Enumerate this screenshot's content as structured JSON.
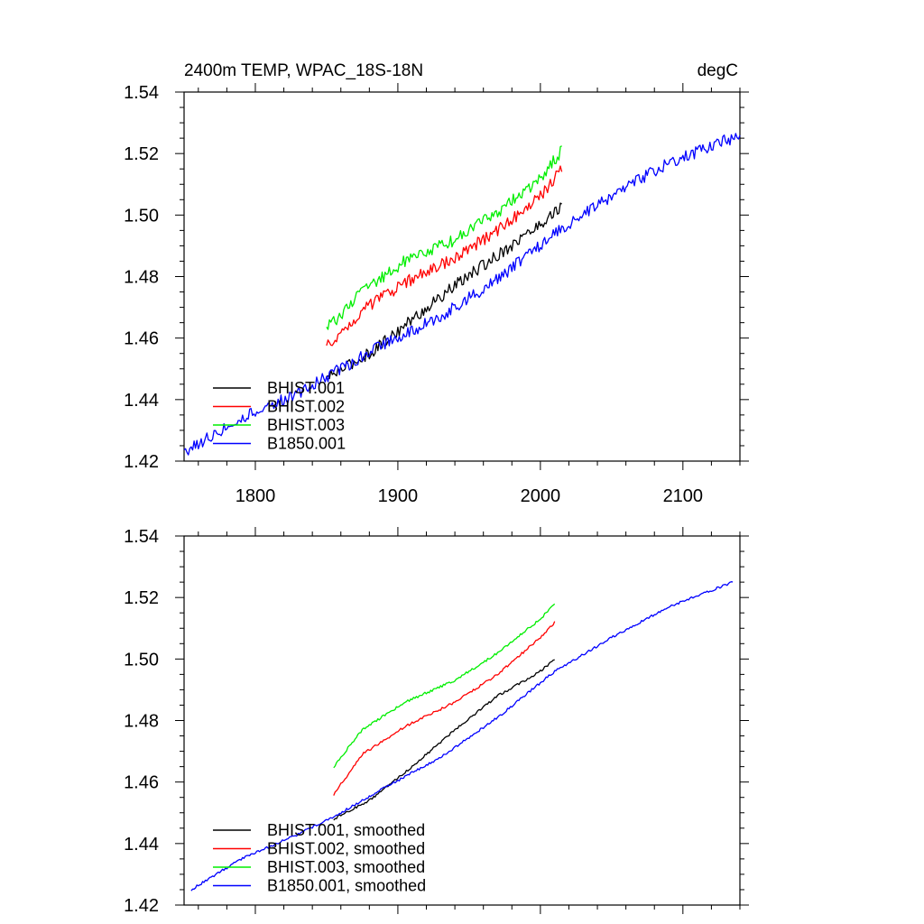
{
  "chart_data": [
    {
      "type": "line",
      "title": "2400m TEMP, WPAC_18S-18N",
      "units": "degC",
      "xlim": [
        1750,
        2140
      ],
      "ylim": [
        1.42,
        1.54
      ],
      "xticks": [
        1800,
        1900,
        2000,
        2100
      ],
      "xtick_labels": [
        "1800",
        "1900",
        "2000",
        "2100"
      ],
      "yticks": [
        1.42,
        1.44,
        1.46,
        1.48,
        1.5,
        1.52,
        1.54
      ],
      "ytick_labels": [
        "1.42",
        "1.44",
        "1.46",
        "1.48",
        "1.50",
        "1.52",
        "1.54"
      ],
      "legend": "bottom-left",
      "series": [
        {
          "name": "BHIST.001",
          "color": "#000000",
          "x": [
            1850,
            1880,
            1910,
            1940,
            1970,
            2000,
            2015
          ],
          "y": [
            1.447,
            1.455,
            1.466,
            1.477,
            1.487,
            1.497,
            1.503
          ],
          "noise": 0.002
        },
        {
          "name": "BHIST.002",
          "color": "#ff0000",
          "x": [
            1850,
            1875,
            1905,
            1940,
            1970,
            2000,
            2015
          ],
          "y": [
            1.457,
            1.469,
            1.478,
            1.486,
            1.495,
            1.506,
            1.515
          ],
          "noise": 0.002
        },
        {
          "name": "BHIST.003",
          "color": "#00ee00",
          "x": [
            1850,
            1875,
            1905,
            1940,
            1970,
            2000,
            2015
          ],
          "y": [
            1.463,
            1.475,
            1.485,
            1.492,
            1.501,
            1.512,
            1.521
          ],
          "noise": 0.002
        },
        {
          "name": "B1850.001",
          "color": "#0000ff",
          "x": [
            1750,
            1790,
            1830,
            1860,
            1890,
            1930,
            1970,
            2010,
            2050,
            2090,
            2140
          ],
          "y": [
            1.423,
            1.434,
            1.442,
            1.45,
            1.458,
            1.467,
            1.479,
            1.494,
            1.506,
            1.517,
            1.526
          ],
          "noise": 0.002
        }
      ]
    },
    {
      "type": "line",
      "xlim": [
        1750,
        2140
      ],
      "ylim": [
        1.42,
        1.54
      ],
      "xticks": [
        1800,
        1900,
        2000,
        2100
      ],
      "xtick_labels": [],
      "yticks": [
        1.42,
        1.44,
        1.46,
        1.48,
        1.5,
        1.52,
        1.54
      ],
      "ytick_labels": [
        "1.42",
        "1.44",
        "1.46",
        "1.48",
        "1.50",
        "1.52",
        "1.54"
      ],
      "legend": "bottom-left",
      "series": [
        {
          "name": "BHIST.001, smoothed",
          "color": "#000000",
          "x": [
            1855,
            1880,
            1910,
            1940,
            1970,
            2000,
            2010
          ],
          "y": [
            1.448,
            1.454,
            1.465,
            1.477,
            1.488,
            1.496,
            1.5
          ],
          "noise": 0.0004
        },
        {
          "name": "BHIST.002, smoothed",
          "color": "#ff0000",
          "x": [
            1855,
            1875,
            1905,
            1940,
            1970,
            2000,
            2010
          ],
          "y": [
            1.456,
            1.469,
            1.478,
            1.486,
            1.495,
            1.507,
            1.512
          ],
          "noise": 0.0004
        },
        {
          "name": "BHIST.003, smoothed",
          "color": "#00ee00",
          "x": [
            1855,
            1875,
            1905,
            1940,
            1970,
            2000,
            2010
          ],
          "y": [
            1.465,
            1.477,
            1.486,
            1.493,
            1.502,
            1.513,
            1.518
          ],
          "noise": 0.0004
        },
        {
          "name": "B1850.001, smoothed",
          "color": "#0000ff",
          "x": [
            1755,
            1790,
            1830,
            1860,
            1890,
            1930,
            1970,
            2010,
            2050,
            2090,
            2135
          ],
          "y": [
            1.425,
            1.435,
            1.443,
            1.45,
            1.458,
            1.468,
            1.481,
            1.496,
            1.507,
            1.517,
            1.525
          ],
          "noise": 0.0004
        }
      ]
    }
  ]
}
